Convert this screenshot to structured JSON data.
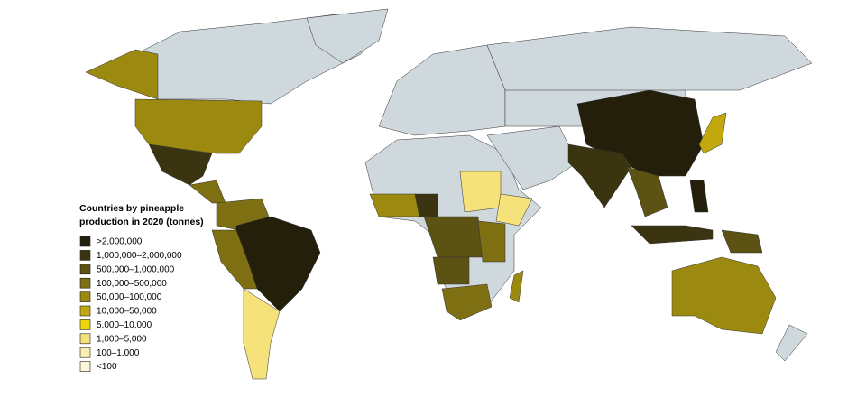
{
  "legend": {
    "title_lines": [
      "Countries by pineapple",
      "production in 2020 (tonnes)"
    ],
    "items": [
      {
        "label": ">2,000,000",
        "color": "#231f0b"
      },
      {
        "label": "1,000,000–2,000,000",
        "color": "#3a3510"
      },
      {
        "label": "500,000–1,000,000",
        "color": "#5c5214"
      },
      {
        "label": "100,000–500,000",
        "color": "#7d6f12"
      },
      {
        "label": "50,000–100,000",
        "color": "#9c8a10"
      },
      {
        "label": "10,000–50,000",
        "color": "#c2a80c"
      },
      {
        "label": "5,000–10,000",
        "color": "#ecd80a"
      },
      {
        "label": "1,000–5,000",
        "color": "#f5e27a"
      },
      {
        "label": "100–1,000",
        "color": "#f9eeb0"
      },
      {
        "label": "<100",
        "color": "#fcf7d8"
      }
    ]
  }
}
